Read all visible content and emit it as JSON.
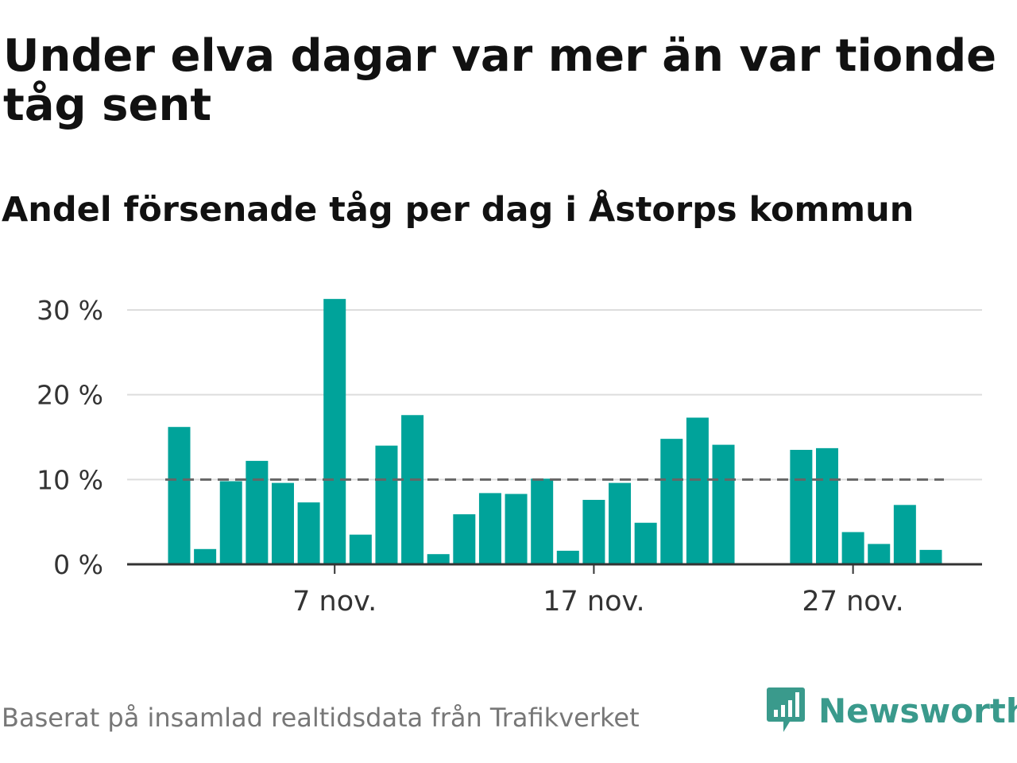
{
  "title": "Under elva dagar var mer än var tionde tåg sent",
  "subtitle": "Andel försenade tåg per dag i Åstorps kommun",
  "source": "Baserat på insamlad realtidsdata från Trafikverket",
  "brand": {
    "name": "Newsworthy",
    "icon": "newsworthy-logo-icon"
  },
  "colors": {
    "bar": "#00a39a",
    "reference_line": "#666666",
    "grid": "#dddddd",
    "axis": "#333333",
    "brand": "#3a9a8c"
  },
  "chart_data": {
    "type": "bar",
    "x": [
      "2024-11-01",
      "2024-11-02",
      "2024-11-03",
      "2024-11-04",
      "2024-11-05",
      "2024-11-06",
      "2024-11-07",
      "2024-11-08",
      "2024-11-09",
      "2024-11-10",
      "2024-11-11",
      "2024-11-12",
      "2024-11-13",
      "2024-11-14",
      "2024-11-15",
      "2024-11-16",
      "2024-11-17",
      "2024-11-18",
      "2024-11-19",
      "2024-11-20",
      "2024-11-21",
      "2024-11-22",
      "2024-11-23",
      "2024-11-24",
      "2024-11-25",
      "2024-11-26",
      "2024-11-27",
      "2024-11-28",
      "2024-11-29",
      "2024-11-30"
    ],
    "values": [
      16.2,
      1.8,
      9.8,
      12.2,
      9.6,
      7.3,
      31.3,
      3.5,
      14.0,
      17.6,
      1.2,
      5.9,
      8.4,
      8.3,
      10.1,
      1.6,
      7.6,
      9.6,
      4.9,
      14.8,
      17.3,
      14.1,
      null,
      null,
      13.5,
      13.7,
      3.8,
      2.4,
      7.0,
      1.7
    ],
    "ylim": [
      0,
      30
    ],
    "yticks": [
      0,
      10,
      20,
      30
    ],
    "ytick_labels": [
      "0 %",
      "10 %",
      "20 %",
      "30 %"
    ],
    "xticks": [
      "2024-11-07",
      "2024-11-17",
      "2024-11-27"
    ],
    "xtick_labels": [
      "7 nov.",
      "17 nov.",
      "27 nov."
    ],
    "reference_line": 10,
    "grid": true
  }
}
